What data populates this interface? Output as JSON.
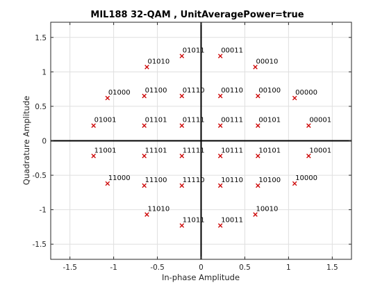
{
  "chart_data": {
    "type": "scatter",
    "title": "MIL188 32-QAM , UnitAveragePower=true",
    "xlabel": "In-phase Amplitude",
    "ylabel": "Quadrature Amplitude",
    "xlim": [
      -1.72,
      1.72
    ],
    "ylim": [
      -1.72,
      1.72
    ],
    "xticks": [
      -1.5,
      -1,
      -0.5,
      0,
      0.5,
      1,
      1.5
    ],
    "yticks": [
      -1.5,
      -1,
      -0.5,
      0,
      0.5,
      1,
      1.5
    ],
    "xtick_labels": [
      "-1.5",
      "-1",
      "-0.5",
      "0",
      "0.5",
      "1",
      "1.5"
    ],
    "ytick_labels": [
      "-1.5",
      "-1",
      "-0.5",
      "0",
      "0.5",
      "1",
      "1.5"
    ],
    "grid": true,
    "marker": "x",
    "marker_color": "#cc0000",
    "points": [
      {
        "x": 0.22,
        "y": 1.23,
        "label": "00011"
      },
      {
        "x": 0.62,
        "y": 1.07,
        "label": "00010"
      },
      {
        "x": 1.07,
        "y": 0.62,
        "label": "00000"
      },
      {
        "x": 1.23,
        "y": 0.22,
        "label": "00001"
      },
      {
        "x": 1.23,
        "y": -0.22,
        "label": "10001"
      },
      {
        "x": 1.07,
        "y": -0.62,
        "label": "10000"
      },
      {
        "x": 0.62,
        "y": -1.07,
        "label": "10010"
      },
      {
        "x": 0.22,
        "y": -1.23,
        "label": "10011"
      },
      {
        "x": -0.22,
        "y": -1.23,
        "label": "11011"
      },
      {
        "x": -0.62,
        "y": -1.07,
        "label": "11010"
      },
      {
        "x": -1.07,
        "y": -0.62,
        "label": "11000"
      },
      {
        "x": -1.23,
        "y": -0.22,
        "label": "11001"
      },
      {
        "x": -1.23,
        "y": 0.22,
        "label": "01001"
      },
      {
        "x": -1.07,
        "y": 0.62,
        "label": "01000"
      },
      {
        "x": -0.62,
        "y": 1.07,
        "label": "01010"
      },
      {
        "x": -0.22,
        "y": 1.23,
        "label": "01011"
      },
      {
        "x": 0.22,
        "y": 0.65,
        "label": "00110"
      },
      {
        "x": 0.65,
        "y": 0.65,
        "label": "00100"
      },
      {
        "x": 0.22,
        "y": 0.22,
        "label": "00111"
      },
      {
        "x": 0.65,
        "y": 0.22,
        "label": "00101"
      },
      {
        "x": -0.22,
        "y": 0.65,
        "label": "01110"
      },
      {
        "x": -0.65,
        "y": 0.65,
        "label": "01100"
      },
      {
        "x": -0.22,
        "y": 0.22,
        "label": "01111"
      },
      {
        "x": -0.65,
        "y": 0.22,
        "label": "01101"
      },
      {
        "x": -0.22,
        "y": -0.22,
        "label": "11111"
      },
      {
        "x": -0.65,
        "y": -0.22,
        "label": "11101"
      },
      {
        "x": -0.22,
        "y": -0.65,
        "label": "11110"
      },
      {
        "x": -0.65,
        "y": -0.65,
        "label": "11100"
      },
      {
        "x": 0.22,
        "y": -0.22,
        "label": "10111"
      },
      {
        "x": 0.65,
        "y": -0.22,
        "label": "10101"
      },
      {
        "x": 0.22,
        "y": -0.65,
        "label": "10110"
      },
      {
        "x": 0.65,
        "y": -0.65,
        "label": "10100"
      }
    ]
  }
}
